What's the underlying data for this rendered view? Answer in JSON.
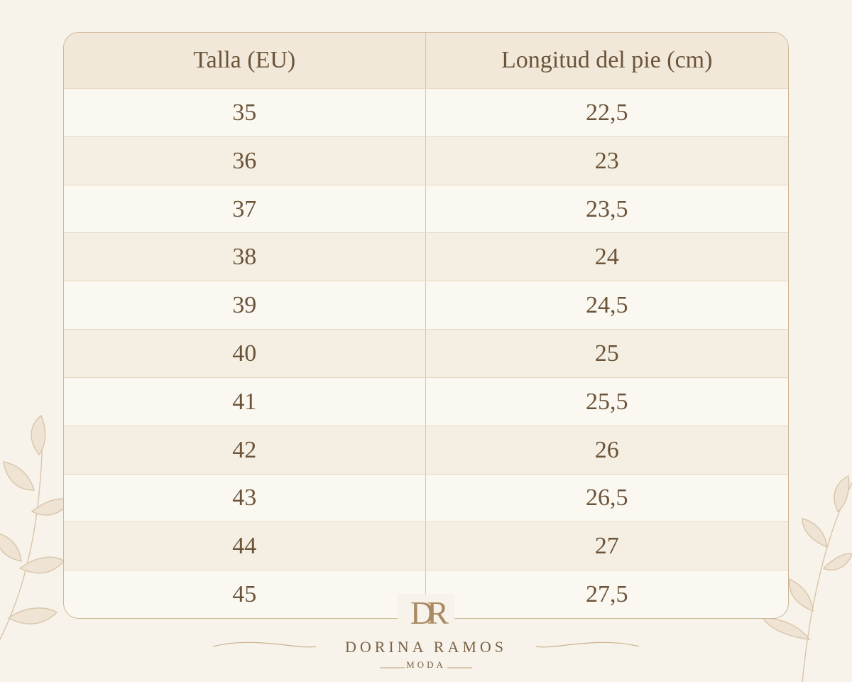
{
  "table": {
    "headers": [
      "Talla (EU)",
      "Longitud del pie (cm)"
    ],
    "rows": [
      [
        "35",
        "22,5"
      ],
      [
        "36",
        "23"
      ],
      [
        "37",
        "23,5"
      ],
      [
        "38",
        "24"
      ],
      [
        "39",
        "24,5"
      ],
      [
        "40",
        "25"
      ],
      [
        "41",
        "25,5"
      ],
      [
        "42",
        "26"
      ],
      [
        "43",
        "26,5"
      ],
      [
        "44",
        "27"
      ],
      [
        "45",
        "27,5"
      ]
    ]
  },
  "brand": {
    "monogram": "DR",
    "name": "DORINA RAMOS",
    "tagline": "MODA"
  }
}
